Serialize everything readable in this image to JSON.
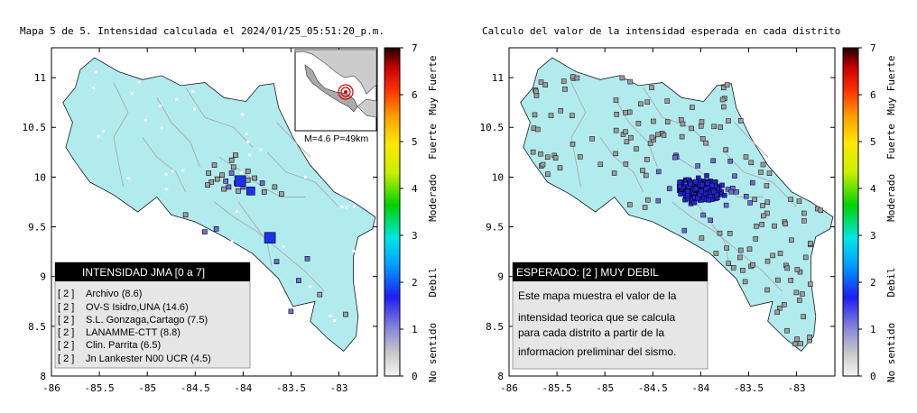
{
  "chart_data": [
    {
      "type": "scatter",
      "title": "Mapa 5 de 5. Intensidad calculada el 2024/01/25_05:51:20_p.m.",
      "xlabel": "",
      "ylabel": "",
      "xlim": [
        -86,
        -82.6
      ],
      "ylim": [
        8,
        11.3
      ],
      "x_ticks": [
        -86,
        -85.5,
        -85,
        -84.5,
        -84,
        -83.5,
        -83
      ],
      "x_tick_labels": [
        "-86",
        "-85.5",
        "-85",
        "-84.5",
        "-84",
        "-83.5",
        "-83"
      ],
      "y_ticks": [
        8,
        8.5,
        9,
        9.5,
        10,
        10.5,
        11
      ],
      "y_tick_labels": [
        "8",
        "8.5",
        "9",
        "9.5",
        "10",
        "10.5",
        "11"
      ],
      "grid": false,
      "colorbar": {
        "range": [
          0,
          7
        ],
        "tick_labels": [
          "0",
          "1",
          "2",
          "3",
          "4",
          "5",
          "6",
          "7"
        ],
        "categories": [
          "No sentido",
          "Debil",
          "Moderado",
          "Fuerte",
          "Muy Fuerte"
        ]
      },
      "inset": {
        "label": "M=4.6 P=49km",
        "epicenter": {
          "lon": -84.1,
          "lat": 9.9
        }
      },
      "legend": {
        "title": "INTENSIDAD JMA [0 a 7]",
        "placement": "bottom-left",
        "entries": [
          {
            "value": "[ 2 ]",
            "label": "Archivo (8.6)"
          },
          {
            "value": "[ 2 ]",
            "label": "OV-S Isidro,UNA (14.6)"
          },
          {
            "value": "[ 2 ]",
            "label": "S.L. Gonzaga,Cartago (7.5)"
          },
          {
            "value": "[ 2 ]",
            "label": "LANAMME-CTT (8.8)"
          },
          {
            "value": "[ 2 ]",
            "label": "Clin. Parrita (6.5)"
          },
          {
            "value": "[ 2 ]",
            "label": "Jn Lankester N00 UCR (4.5)"
          }
        ]
      },
      "series": [
        {
          "name": "",
          "points": [
            {
              "lon": -84.03,
              "lat": 9.96,
              "intensity": 2,
              "size": "large"
            },
            {
              "lon": -83.92,
              "lat": 9.86,
              "intensity": 2,
              "size": "medium"
            },
            {
              "lon": -83.72,
              "lat": 9.39,
              "intensity": 2,
              "size": "large"
            },
            {
              "lon": -84.28,
              "lat": 9.48,
              "intensity": 1,
              "size": "small"
            },
            {
              "lon": -84.12,
              "lat": 10.04,
              "intensity": 1,
              "size": "small"
            },
            {
              "lon": -84.18,
              "lat": 9.96,
              "intensity": 1,
              "size": "small"
            },
            {
              "lon": -84.0,
              "lat": 9.9,
              "intensity": 1,
              "size": "small"
            },
            {
              "lon": -84.07,
              "lat": 9.94,
              "intensity": 1,
              "size": "small"
            },
            {
              "lon": -83.8,
              "lat": 9.94,
              "intensity": 1,
              "size": "small"
            },
            {
              "lon": -84.15,
              "lat": 9.9,
              "intensity": 1,
              "size": "small"
            },
            {
              "lon": -83.33,
              "lat": 9.18,
              "intensity": 1,
              "size": "small"
            },
            {
              "lon": -83.65,
              "lat": 9.15,
              "intensity": 1,
              "size": "small"
            },
            {
              "lon": -83.5,
              "lat": 8.65,
              "intensity": 1,
              "size": "small"
            },
            {
              "lon": -83.42,
              "lat": 8.96,
              "intensity": 1,
              "size": "small"
            },
            {
              "lon": -84.4,
              "lat": 9.45,
              "intensity": 1,
              "size": "small"
            },
            {
              "lon": -84.3,
              "lat": 10.12,
              "intensity": 0,
              "size": "small"
            },
            {
              "lon": -84.22,
              "lat": 10.02,
              "intensity": 0,
              "size": "small"
            },
            {
              "lon": -84.27,
              "lat": 9.98,
              "intensity": 0,
              "size": "small"
            },
            {
              "lon": -84.1,
              "lat": 10.1,
              "intensity": 0,
              "size": "small"
            },
            {
              "lon": -83.95,
              "lat": 10.06,
              "intensity": 0,
              "size": "small"
            },
            {
              "lon": -84.36,
              "lat": 10.04,
              "intensity": 0,
              "size": "small"
            },
            {
              "lon": -84.33,
              "lat": 9.95,
              "intensity": 0,
              "size": "small"
            },
            {
              "lon": -84.2,
              "lat": 9.88,
              "intensity": 0,
              "size": "small"
            },
            {
              "lon": -83.88,
              "lat": 9.99,
              "intensity": 0,
              "size": "small"
            },
            {
              "lon": -84.12,
              "lat": 10.17,
              "intensity": 0,
              "size": "small"
            },
            {
              "lon": -83.67,
              "lat": 9.9,
              "intensity": 0,
              "size": "small"
            },
            {
              "lon": -83.6,
              "lat": 9.83,
              "intensity": 0,
              "size": "small"
            },
            {
              "lon": -84.37,
              "lat": 9.92,
              "intensity": 0,
              "size": "small"
            },
            {
              "lon": -84.6,
              "lat": 9.62,
              "intensity": 0,
              "size": "small"
            },
            {
              "lon": -83.2,
              "lat": 8.82,
              "intensity": 0,
              "size": "small"
            },
            {
              "lon": -82.93,
              "lat": 8.62,
              "intensity": 0,
              "size": "small"
            },
            {
              "lon": -84.08,
              "lat": 10.22,
              "intensity": 0,
              "size": "small"
            },
            {
              "lon": -83.78,
              "lat": 9.85,
              "intensity": 0,
              "size": "small"
            },
            {
              "lon": -84.05,
              "lat": 9.86,
              "intensity": 0,
              "size": "small"
            },
            {
              "lon": -83.95,
              "lat": 9.97,
              "intensity": 0,
              "size": "small"
            }
          ]
        }
      ]
    },
    {
      "type": "scatter",
      "title": "Calculo del valor de la intensidad esperada en cada distrito",
      "xlabel": "",
      "ylabel": "",
      "xlim": [
        -86,
        -82.6
      ],
      "ylim": [
        8,
        11.3
      ],
      "x_ticks": [
        -86,
        -85.5,
        -85,
        -84.5,
        -84,
        -83.5,
        -83
      ],
      "x_tick_labels": [
        "-86",
        "-85.5",
        "-85",
        "-84.5",
        "-84",
        "-83.5",
        "-83"
      ],
      "y_ticks": [
        8,
        8.5,
        9,
        9.5,
        10,
        10.5,
        11
      ],
      "y_tick_labels": [
        "8",
        "8.5",
        "9",
        "9.5",
        "10",
        "10.5",
        "11"
      ],
      "grid": false,
      "colorbar": {
        "range": [
          0,
          7
        ],
        "tick_labels": [
          "0",
          "1",
          "2",
          "3",
          "4",
          "5",
          "6",
          "7"
        ],
        "categories": [
          "No sentido",
          "Debil",
          "Moderado",
          "Fuerte",
          "Muy Fuerte"
        ]
      },
      "annotation": {
        "title": "ESPERADO: [2 ] MUY DEBIL",
        "placement": "bottom-left",
        "lines": [
          "Este mapa muestra el valor de la",
          "intensidad teorica que se calcula",
          "para cada distrito a partir de la",
          "informacion preliminar del sismo."
        ]
      },
      "series": [
        {
          "name": "",
          "epicenter": {
            "lon": -84.0,
            "lat": 9.87
          },
          "district_count": 480,
          "intensity_range": [
            0,
            2
          ]
        }
      ]
    }
  ],
  "colors": {
    "land": "#b1ebee",
    "coast": "#1a1a1a",
    "rivers": "#aaaaaa",
    "station_grey": "#a0a0a0",
    "legend_bg": "#e6e6e6",
    "legend_header": "#000000"
  }
}
